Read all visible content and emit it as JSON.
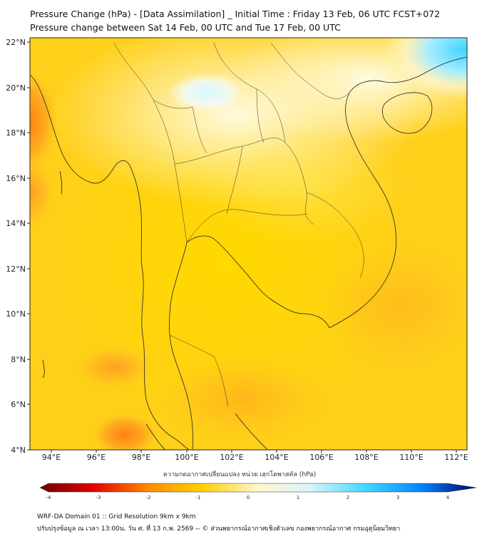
{
  "title": {
    "line1": "Pressure Change (hPa) - [Data Assimilation] _ Initial Time : Friday 13 Feb, 06 UTC FCST+072",
    "line2": "Pressure change between Sat 14 Feb, 00 UTC and Tue 17 Feb, 00 UTC"
  },
  "axes": {
    "lon_labels": [
      "94°E",
      "96°E",
      "98°E",
      "100°E",
      "102°E",
      "104°E",
      "106°E",
      "108°E",
      "110°E",
      "112°E"
    ],
    "lat_labels": [
      "22°N",
      "20°N",
      "18°N",
      "16°N",
      "14°N",
      "12°N",
      "10°N",
      "8°N",
      "6°N",
      "4°N"
    ]
  },
  "colorbar": {
    "title": "ความกดอากาศเปลี่ยนแปลง หน่วย เฮกโตพาสคัล (hPa)",
    "tick_labels": [
      "-4",
      "-3",
      "-2",
      "-1",
      "0",
      "1",
      "2",
      "3",
      "4"
    ],
    "colors": {
      "neg4": "#6e0000",
      "neg3": "#e00000",
      "neg2": "#ff8c00",
      "neg1": "#ffd000",
      "zero": "#fff7cc",
      "pos1": "#d8f4ff",
      "pos2": "#3fd6ff",
      "pos3": "#0080ff",
      "pos4": "#000060"
    }
  },
  "footer": {
    "line1": "WRF-DA Domain 01 :: Grid Resolution 9km x 9km",
    "line2": "ปรับปรุงข้อมูล ณ เวลา 13:00น. วัน ศ. ที่ 13 ก.พ. 2569 -- © ส่วนพยากรณ์อากาศเชิงตัวเลข กองพยากรณ์อากาศ กรมอุตุนิยมวิทยา"
  }
}
